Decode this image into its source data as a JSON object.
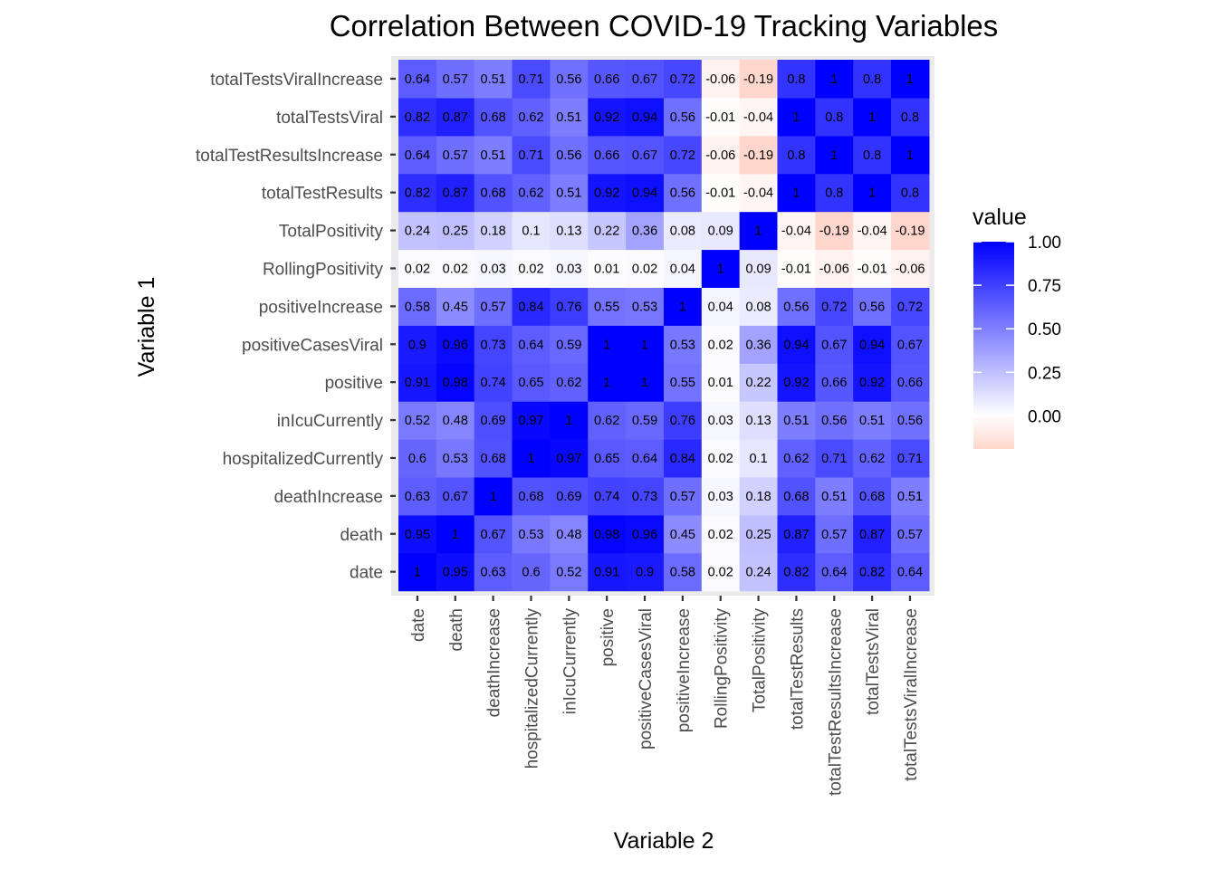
{
  "chart_data": {
    "type": "heatmap",
    "title": "Correlation Between COVID-19 Tracking Variables",
    "xlabel": "Variable 2",
    "ylabel": "Variable 1",
    "legend_title": "value",
    "legend_placement": "right",
    "legend_ticks": [
      "1.00",
      "0.75",
      "0.50",
      "0.25",
      "0.00"
    ],
    "legend_tick_values": [
      1.0,
      0.75,
      0.5,
      0.25,
      0.0
    ],
    "value_range": [
      -0.19,
      1.0
    ],
    "colors": {
      "low": "#ffd6cc",
      "mid": "#ffffff",
      "high": "#0000ff",
      "panel_background": "#ebebeb"
    },
    "variables": [
      "date",
      "death",
      "deathIncrease",
      "hospitalizedCurrently",
      "inIcuCurrently",
      "positive",
      "positiveCasesViral",
      "positiveIncrease",
      "RollingPositivity",
      "TotalPositivity",
      "totalTestResults",
      "totalTestResultsIncrease",
      "totalTestsViral",
      "totalTestsViralIncrease"
    ],
    "matrix": [
      [
        1,
        0.95,
        0.63,
        0.6,
        0.52,
        0.91,
        0.9,
        0.58,
        0.02,
        0.24,
        0.82,
        0.64,
        0.82,
        0.64
      ],
      [
        0.95,
        1,
        0.67,
        0.53,
        0.48,
        0.98,
        0.96,
        0.45,
        0.02,
        0.25,
        0.87,
        0.57,
        0.87,
        0.57
      ],
      [
        0.63,
        0.67,
        1,
        0.68,
        0.69,
        0.74,
        0.73,
        0.57,
        0.03,
        0.18,
        0.68,
        0.51,
        0.68,
        0.51
      ],
      [
        0.6,
        0.53,
        0.68,
        1,
        0.97,
        0.65,
        0.64,
        0.84,
        0.02,
        0.1,
        0.62,
        0.71,
        0.62,
        0.71
      ],
      [
        0.52,
        0.48,
        0.69,
        0.97,
        1,
        0.62,
        0.59,
        0.76,
        0.03,
        0.13,
        0.51,
        0.56,
        0.51,
        0.56
      ],
      [
        0.91,
        0.98,
        0.74,
        0.65,
        0.62,
        1,
        1,
        0.55,
        0.01,
        0.22,
        0.92,
        0.66,
        0.92,
        0.66
      ],
      [
        0.9,
        0.96,
        0.73,
        0.64,
        0.59,
        1,
        1,
        0.53,
        0.02,
        0.36,
        0.94,
        0.67,
        0.94,
        0.67
      ],
      [
        0.58,
        0.45,
        0.57,
        0.84,
        0.76,
        0.55,
        0.53,
        1,
        0.04,
        0.08,
        0.56,
        0.72,
        0.56,
        0.72
      ],
      [
        0.02,
        0.02,
        0.03,
        0.02,
        0.03,
        0.01,
        0.02,
        0.04,
        1,
        0.09,
        -0.01,
        -0.06,
        -0.01,
        -0.06
      ],
      [
        0.24,
        0.25,
        0.18,
        0.1,
        0.13,
        0.22,
        0.36,
        0.08,
        0.09,
        1,
        -0.04,
        -0.19,
        -0.04,
        -0.19
      ],
      [
        0.82,
        0.87,
        0.68,
        0.62,
        0.51,
        0.92,
        0.94,
        0.56,
        -0.01,
        -0.04,
        1,
        0.8,
        1,
        0.8
      ],
      [
        0.64,
        0.57,
        0.51,
        0.71,
        0.56,
        0.66,
        0.67,
        0.72,
        -0.06,
        -0.19,
        0.8,
        1,
        0.8,
        1
      ],
      [
        0.82,
        0.87,
        0.68,
        0.62,
        0.51,
        0.92,
        0.94,
        0.56,
        -0.01,
        -0.04,
        1,
        0.8,
        1,
        0.8
      ],
      [
        0.64,
        0.57,
        0.51,
        0.71,
        0.56,
        0.66,
        0.67,
        0.72,
        -0.06,
        -0.19,
        0.8,
        1,
        0.8,
        1
      ]
    ]
  }
}
